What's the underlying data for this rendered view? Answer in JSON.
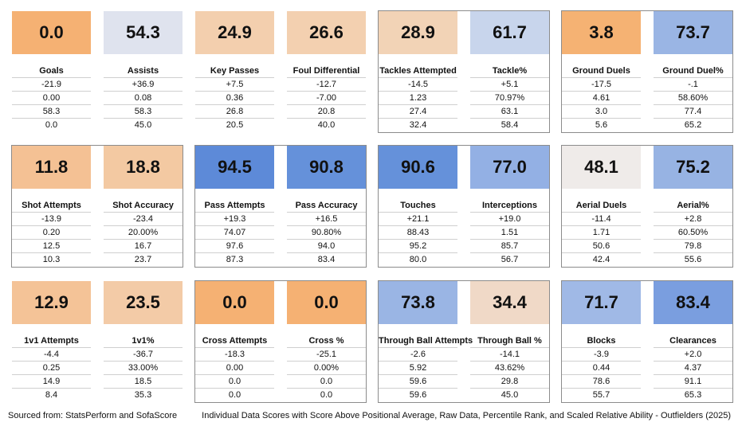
{
  "panels": [
    {
      "label": "Goals",
      "score": "0.0",
      "color": "#f5b173",
      "rows": [
        "-21.9",
        "0.00",
        "58.3",
        "0.0"
      ]
    },
    {
      "label": "Assists",
      "score": "54.3",
      "color": "#dfe3ee",
      "rows": [
        "+36.9",
        "0.08",
        "58.3",
        "45.0"
      ]
    },
    {
      "label": "Key Passes",
      "score": "24.9",
      "color": "#f3cfae",
      "rows": [
        "+7.5",
        "0.36",
        "26.8",
        "20.5"
      ]
    },
    {
      "label": "Foul Differential",
      "score": "26.6",
      "color": "#f3d0b0",
      "rows": [
        "-12.7",
        "-7.00",
        "20.8",
        "40.0"
      ]
    },
    {
      "label": "Tackles Attempted",
      "score": "28.9",
      "color": "#f2d3b6",
      "rows": [
        "-14.5",
        "1.23",
        "27.4",
        "32.4"
      ]
    },
    {
      "label": "Tackle%",
      "score": "61.7",
      "color": "#c8d5ec",
      "rows": [
        "+5.1",
        "70.97%",
        "63.1",
        "58.4"
      ]
    },
    {
      "label": "Ground Duels",
      "score": "3.8",
      "color": "#f5b273",
      "rows": [
        "-17.5",
        "4.61",
        "3.0",
        "5.6"
      ]
    },
    {
      "label": "Ground Duel%",
      "score": "73.7",
      "color": "#9ab5e4",
      "rows": [
        "-.1",
        "58.60%",
        "77.4",
        "65.2"
      ]
    },
    {
      "label": "Shot Attempts",
      "score": "11.8",
      "color": "#f4c194",
      "rows": [
        "-13.9",
        "0.20",
        "12.5",
        "10.3"
      ]
    },
    {
      "label": "Shot Accuracy",
      "score": "18.8",
      "color": "#f3c9a2",
      "rows": [
        "-23.4",
        "20.00%",
        "16.7",
        "23.7"
      ]
    },
    {
      "label": "Pass Attempts",
      "score": "94.5",
      "color": "#5d8ad8",
      "rows": [
        "+19.3",
        "74.07",
        "97.6",
        "87.3"
      ]
    },
    {
      "label": "Pass Accuracy",
      "score": "90.8",
      "color": "#6591da",
      "rows": [
        "+16.5",
        "90.80%",
        "94.0",
        "83.4"
      ]
    },
    {
      "label": "Touches",
      "score": "90.6",
      "color": "#6591da",
      "rows": [
        "+21.1",
        "88.43",
        "95.2",
        "80.0"
      ]
    },
    {
      "label": "Interceptions",
      "score": "77.0",
      "color": "#93b0e4",
      "rows": [
        "+19.0",
        "1.51",
        "85.7",
        "56.7"
      ]
    },
    {
      "label": "Aerial Duels",
      "score": "48.1",
      "color": "#efebe9",
      "rows": [
        "-11.4",
        "1.71",
        "50.6",
        "42.4"
      ]
    },
    {
      "label": "Aerial%",
      "score": "75.2",
      "color": "#97b3e3",
      "rows": [
        "+2.8",
        "60.50%",
        "79.8",
        "55.6"
      ]
    },
    {
      "label": "1v1 Attempts",
      "score": "12.9",
      "color": "#f4c397",
      "rows": [
        "-4.4",
        "0.25",
        "14.9",
        "8.4"
      ]
    },
    {
      "label": "1v1%",
      "score": "23.5",
      "color": "#f3cba7",
      "rows": [
        "-36.7",
        "33.00%",
        "18.5",
        "35.3"
      ]
    },
    {
      "label": "Cross Attempts",
      "score": "0.0",
      "color": "#f5b173",
      "rows": [
        "-18.3",
        "0.00",
        "0.0",
        "0.0"
      ]
    },
    {
      "label": "Cross %",
      "score": "0.0",
      "color": "#f5b173",
      "rows": [
        "-25.1",
        "0.00%",
        "0.0",
        "0.0"
      ]
    },
    {
      "label": "Through Ball Attempts",
      "score": "73.8",
      "color": "#9ab5e4",
      "rows": [
        "-2.6",
        "5.92",
        "59.6",
        "59.6"
      ]
    },
    {
      "label": "Through Ball %",
      "score": "34.4",
      "color": "#f0d9c7",
      "rows": [
        "-14.1",
        "43.62%",
        "29.8",
        "45.0"
      ]
    },
    {
      "label": "Blocks",
      "score": "71.7",
      "color": "#a0b9e6",
      "rows": [
        "-3.9",
        "0.44",
        "78.6",
        "55.7"
      ]
    },
    {
      "label": "Clearances",
      "score": "83.4",
      "color": "#7a9edf",
      "rows": [
        "+2.0",
        "4.37",
        "91.1",
        "65.3"
      ]
    }
  ],
  "footer": {
    "source": "Sourced from: StatsPerform and SofaScore",
    "title": "Individual Data Scores with Score Above Positional Average, Raw Data, Percentile Rank, and Scaled Relative Ability - Outfielders (2025)"
  }
}
